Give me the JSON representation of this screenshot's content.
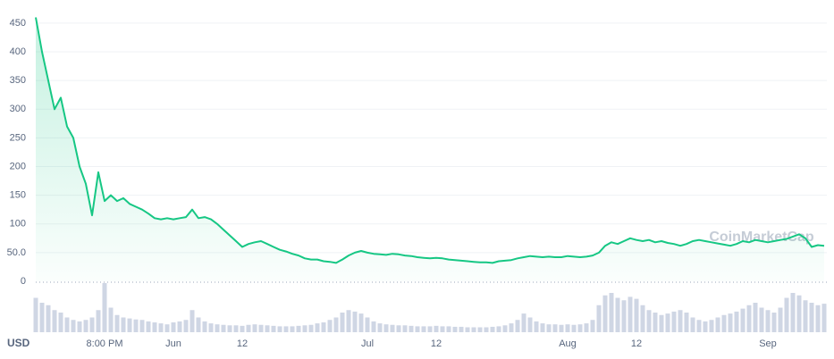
{
  "chart_data": {
    "type": "line",
    "y_label": "USD",
    "watermark": "CoinMarketCap",
    "color": "#16c784",
    "grid": true,
    "ylim": [
      0,
      467
    ],
    "yticks": [
      0,
      {
        "value": 50,
        "label": "50.0"
      },
      100,
      150,
      200,
      250,
      300,
      350,
      400,
      450
    ],
    "categories": [
      null,
      null,
      null,
      null,
      null,
      null,
      null,
      null,
      null,
      null,
      null,
      "8:00 PM",
      null,
      null,
      null,
      null,
      null,
      null,
      null,
      null,
      null,
      null,
      "Jun",
      null,
      null,
      null,
      null,
      null,
      null,
      null,
      null,
      null,
      null,
      "12",
      null,
      null,
      null,
      null,
      null,
      null,
      null,
      null,
      null,
      null,
      null,
      null,
      null,
      null,
      null,
      null,
      null,
      null,
      null,
      "Jul",
      null,
      null,
      null,
      null,
      null,
      null,
      null,
      null,
      null,
      null,
      "12",
      null,
      null,
      null,
      null,
      null,
      null,
      null,
      null,
      null,
      null,
      null,
      null,
      null,
      null,
      null,
      null,
      null,
      null,
      null,
      null,
      "Aug",
      null,
      null,
      null,
      null,
      null,
      null,
      null,
      null,
      null,
      null,
      "12",
      null,
      null,
      null,
      null,
      null,
      null,
      null,
      null,
      null,
      null,
      null,
      null,
      null,
      null,
      null,
      null,
      null,
      null,
      null,
      null,
      "Sep",
      null,
      null,
      null,
      null,
      null,
      null,
      null,
      null,
      null
    ],
    "values": [
      460,
      400,
      350,
      300,
      320,
      270,
      250,
      200,
      170,
      115,
      190,
      140,
      150,
      140,
      145,
      135,
      130,
      125,
      118,
      110,
      108,
      110,
      108,
      110,
      112,
      125,
      110,
      112,
      108,
      100,
      90,
      80,
      70,
      60,
      65,
      68,
      70,
      65,
      60,
      55,
      52,
      48,
      45,
      40,
      38,
      38,
      35,
      34,
      32,
      38,
      45,
      50,
      53,
      50,
      48,
      47,
      46,
      48,
      47,
      45,
      44,
      42,
      41,
      40,
      41,
      40,
      38,
      37,
      36,
      35,
      34,
      33,
      33,
      32,
      35,
      36,
      37,
      40,
      42,
      44,
      43,
      42,
      43,
      42,
      42,
      44,
      43,
      42,
      43,
      45,
      50,
      62,
      68,
      65,
      70,
      75,
      72,
      70,
      72,
      68,
      70,
      67,
      65,
      62,
      65,
      70,
      72,
      70,
      68,
      66,
      64,
      62,
      65,
      70,
      68,
      72,
      70,
      68,
      70,
      72,
      74,
      78,
      82,
      75,
      60,
      63,
      62
    ],
    "volume_color": "#cfd6e4",
    "volume_lim": [
      0,
      100
    ],
    "volume": [
      70,
      60,
      55,
      45,
      40,
      30,
      25,
      22,
      25,
      30,
      45,
      100,
      50,
      35,
      30,
      28,
      26,
      25,
      22,
      20,
      18,
      16,
      20,
      22,
      25,
      45,
      30,
      22,
      18,
      16,
      15,
      14,
      14,
      13,
      15,
      16,
      15,
      14,
      13,
      12,
      12,
      12,
      13,
      14,
      15,
      18,
      20,
      25,
      30,
      40,
      45,
      42,
      38,
      30,
      22,
      18,
      16,
      15,
      14,
      14,
      13,
      12,
      12,
      12,
      13,
      12,
      12,
      11,
      11,
      10,
      10,
      10,
      10,
      11,
      12,
      14,
      18,
      25,
      38,
      30,
      22,
      18,
      16,
      16,
      15,
      16,
      15,
      16,
      18,
      25,
      55,
      75,
      80,
      70,
      65,
      72,
      68,
      55,
      45,
      40,
      35,
      38,
      42,
      45,
      40,
      30,
      25,
      22,
      25,
      30,
      35,
      38,
      42,
      48,
      55,
      60,
      50,
      45,
      40,
      50,
      70,
      80,
      75,
      65,
      60,
      55,
      58
    ]
  }
}
